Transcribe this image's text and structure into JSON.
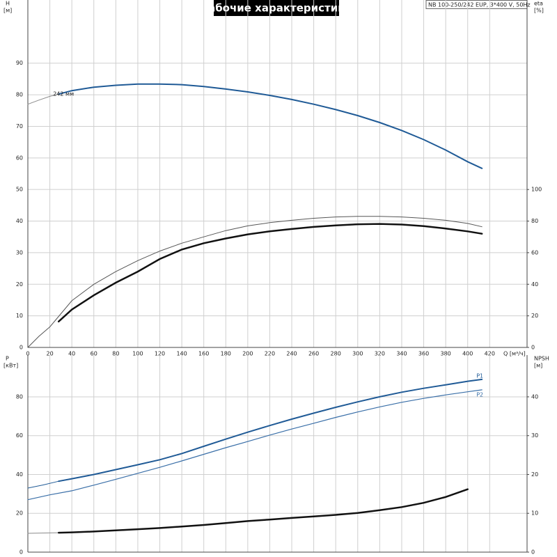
{
  "chart_data": [
    {
      "type": "line",
      "title": "Рабочие характеристики",
      "subtitle": "NB 100-250/242 EUP, 3*400 V, 50Hz",
      "y_label": "H",
      "y_unit": "[м]",
      "y2_label": "eta",
      "y2_unit": "[%]",
      "x_label": "Q [м³/ч]",
      "xlim": [
        0,
        454
      ],
      "xticks": [
        0,
        20,
        40,
        60,
        80,
        100,
        120,
        140,
        160,
        180,
        200,
        220,
        240,
        260,
        280,
        300,
        320,
        340,
        360,
        380,
        400,
        420
      ],
      "ylim": [
        0,
        110
      ],
      "yticks": [
        0,
        10,
        20,
        30,
        40,
        50,
        60,
        70,
        80,
        90
      ],
      "y2lim": [
        0,
        220
      ],
      "y2ticks": [
        0,
        20,
        40,
        60,
        80,
        100
      ],
      "grid": true,
      "series": [
        {
          "color": "#8a8a8a",
          "width": 1,
          "x": [
            0,
            10,
            20,
            28
          ],
          "values": [
            77,
            78.3,
            79.5,
            80.2
          ]
        },
        {
          "name": "242 мм",
          "label_at": "start",
          "color": "#1f5a96",
          "width": 2,
          "x": [
            28,
            40,
            60,
            80,
            100,
            120,
            140,
            160,
            180,
            200,
            220,
            240,
            260,
            280,
            300,
            320,
            340,
            360,
            380,
            400,
            413
          ],
          "values": [
            80.2,
            81.3,
            82.4,
            83,
            83.4,
            83.4,
            83.2,
            82.6,
            81.8,
            80.9,
            79.8,
            78.5,
            77,
            75.3,
            73.4,
            71.2,
            68.7,
            65.8,
            62.5,
            58.8,
            56.7
          ]
        },
        {
          "axis": "y2",
          "color": "#555555",
          "width": 1,
          "x": [
            0,
            10,
            20,
            40,
            60,
            80,
            100,
            120,
            140,
            160,
            180,
            200,
            220,
            240,
            260,
            280,
            300,
            320,
            340,
            360,
            380,
            400,
            413
          ],
          "values": [
            0,
            7,
            13,
            29.6,
            40,
            48,
            55,
            61,
            66,
            70,
            74,
            77,
            79,
            80.5,
            81.8,
            82.6,
            83,
            83,
            82.6,
            81.8,
            80.5,
            78.5,
            76.4
          ]
        },
        {
          "axis": "y2",
          "color": "#111111",
          "width": 2.5,
          "x": [
            28,
            40,
            60,
            80,
            100,
            120,
            140,
            160,
            180,
            200,
            220,
            240,
            260,
            280,
            300,
            320,
            340,
            360,
            380,
            400,
            413
          ],
          "values": [
            16.4,
            24,
            33,
            41,
            48,
            56,
            62,
            66,
            69,
            71.6,
            73.5,
            75,
            76.3,
            77.3,
            78,
            78.2,
            77.8,
            76.8,
            75.3,
            73.5,
            72
          ]
        }
      ]
    },
    {
      "type": "line",
      "y_label": "P",
      "y_unit": "[кВт]",
      "y2_label": "NPSH",
      "y2_unit": "[м]",
      "xlim": [
        0,
        454
      ],
      "ylim": [
        0,
        101.5
      ],
      "yticks": [
        0,
        20,
        40,
        60,
        80
      ],
      "y2lim": [
        0,
        50.75
      ],
      "y2ticks": [
        0,
        10,
        20,
        30,
        40
      ],
      "grid": true,
      "series": [
        {
          "color": "#1f5a96",
          "width": 1,
          "x": [
            0,
            14,
            28
          ],
          "values": [
            33,
            34.6,
            36.5
          ]
        },
        {
          "name": "P1",
          "label_at": "end-above",
          "color": "#1f5a96",
          "width": 2,
          "x": [
            28,
            40,
            60,
            80,
            100,
            120,
            140,
            160,
            180,
            200,
            220,
            240,
            260,
            280,
            300,
            320,
            340,
            360,
            380,
            400,
            413
          ],
          "values": [
            36.5,
            37.8,
            40,
            42.5,
            45,
            47.6,
            50.8,
            54.5,
            58.2,
            61.8,
            65.2,
            68.5,
            71.6,
            74.6,
            77.4,
            80,
            82.4,
            84.4,
            86.2,
            88,
            89
          ]
        },
        {
          "name": "P2",
          "label_at": "end-below",
          "color": "#3a6fa8",
          "width": 1.2,
          "x": [
            0,
            20,
            40,
            60,
            80,
            100,
            120,
            140,
            160,
            180,
            200,
            220,
            240,
            260,
            280,
            300,
            320,
            340,
            360,
            380,
            400,
            413
          ],
          "values": [
            27,
            29.5,
            31.6,
            34.5,
            37.5,
            40.6,
            43.7,
            47,
            50.4,
            53.8,
            57,
            60.3,
            63.4,
            66.4,
            69.4,
            72.2,
            74.8,
            77.2,
            79.2,
            81,
            82.6,
            83.6
          ]
        },
        {
          "axis": "y2",
          "color": "#8a8a8a",
          "width": 1,
          "x": [
            0,
            28
          ],
          "values": [
            4.85,
            5
          ]
        },
        {
          "axis": "y2",
          "color": "#111111",
          "width": 2.5,
          "x": [
            28,
            40,
            60,
            80,
            100,
            120,
            140,
            160,
            180,
            200,
            220,
            240,
            260,
            280,
            300,
            320,
            340,
            360,
            380,
            400
          ],
          "values": [
            5,
            5.1,
            5.3,
            5.6,
            5.9,
            6.2,
            6.6,
            7.0,
            7.5,
            8.0,
            8.4,
            8.8,
            9.2,
            9.6,
            10.1,
            10.8,
            11.6,
            12.7,
            14.2,
            16.2
          ]
        }
      ]
    }
  ]
}
